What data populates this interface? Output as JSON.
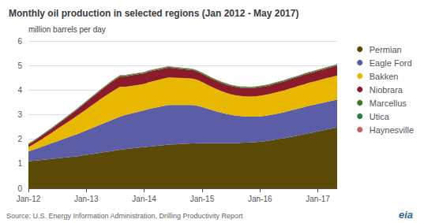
{
  "chart_data": {
    "type": "area",
    "title": "Monthly oil production in selected regions (Jan 2012 - May 2017)",
    "ylabel": "million barrels per day",
    "annotations": [
      "Source: U.S. Energy Information Administration, Drilling Productivity Report",
      "eia"
    ],
    "stacked": true,
    "grid": true,
    "legend": "right",
    "ylim": [
      0,
      6
    ],
    "yticks": [
      0,
      1,
      2,
      3,
      4,
      5,
      6
    ],
    "categories": [
      "Jan-12",
      null,
      null,
      null,
      null,
      null,
      null,
      null,
      null,
      null,
      null,
      null,
      "Jan-13",
      null,
      null,
      null,
      null,
      null,
      null,
      null,
      null,
      null,
      null,
      null,
      "Jan-14",
      null,
      null,
      null,
      null,
      null,
      null,
      null,
      null,
      null,
      null,
      null,
      "Jan-15",
      null,
      null,
      null,
      null,
      null,
      null,
      null,
      null,
      null,
      null,
      null,
      "Jan-16",
      null,
      null,
      null,
      null,
      null,
      null,
      null,
      null,
      null,
      null,
      null,
      "Jan-17",
      null,
      null,
      null,
      null
    ],
    "series": [
      {
        "name": "Permian",
        "color": "#5c4a08",
        "values": [
          1.1,
          1.12,
          1.14,
          1.16,
          1.18,
          1.2,
          1.22,
          1.24,
          1.26,
          1.28,
          1.3,
          1.33,
          1.36,
          1.39,
          1.42,
          1.45,
          1.48,
          1.51,
          1.54,
          1.57,
          1.6,
          1.62,
          1.64,
          1.66,
          1.68,
          1.7,
          1.72,
          1.74,
          1.76,
          1.78,
          1.79,
          1.8,
          1.81,
          1.82,
          1.83,
          1.84,
          1.84,
          1.84,
          1.84,
          1.84,
          1.84,
          1.84,
          1.84,
          1.84,
          1.85,
          1.86,
          1.87,
          1.88,
          1.9,
          1.92,
          1.95,
          1.98,
          2.01,
          2.04,
          2.08,
          2.12,
          2.16,
          2.2,
          2.24,
          2.28,
          2.32,
          2.36,
          2.4,
          2.44,
          2.48
        ]
      },
      {
        "name": "Eagle Ford",
        "color": "#5b5ea6",
        "values": [
          0.4,
          0.45,
          0.5,
          0.55,
          0.6,
          0.65,
          0.7,
          0.75,
          0.8,
          0.85,
          0.9,
          0.95,
          1.0,
          1.05,
          1.1,
          1.15,
          1.2,
          1.25,
          1.3,
          1.35,
          1.38,
          1.41,
          1.44,
          1.47,
          1.5,
          1.53,
          1.55,
          1.57,
          1.59,
          1.61,
          1.6,
          1.59,
          1.58,
          1.57,
          1.56,
          1.52,
          1.47,
          1.41,
          1.35,
          1.29,
          1.24,
          1.19,
          1.15,
          1.12,
          1.09,
          1.07,
          1.05,
          1.04,
          1.03,
          1.03,
          1.03,
          1.04,
          1.05,
          1.06,
          1.07,
          1.08,
          1.09,
          1.1,
          1.11,
          1.11,
          1.12,
          1.12,
          1.13,
          1.13,
          1.14
        ]
      },
      {
        "name": "Bakken",
        "color": "#e8b800",
        "values": [
          0.18,
          0.22,
          0.27,
          0.32,
          0.38,
          0.44,
          0.5,
          0.56,
          0.62,
          0.68,
          0.74,
          0.8,
          0.86,
          0.92,
          0.98,
          1.04,
          1.09,
          1.14,
          1.18,
          1.22,
          1.15,
          1.13,
          1.11,
          1.09,
          1.07,
          1.09,
          1.1,
          1.11,
          1.12,
          1.13,
          1.12,
          1.11,
          1.1,
          1.09,
          1.08,
          1.06,
          1.02,
          0.98,
          0.94,
          0.91,
          0.88,
          0.86,
          0.84,
          0.83,
          0.82,
          0.82,
          0.82,
          0.83,
          0.84,
          0.85,
          0.86,
          0.87,
          0.88,
          0.89,
          0.9,
          0.91,
          0.92,
          0.93,
          0.94,
          0.95,
          0.95,
          0.96,
          0.97,
          0.97,
          0.98
        ]
      },
      {
        "name": "Niobrara",
        "color": "#8b1a2a",
        "values": [
          0.1,
          0.11,
          0.12,
          0.14,
          0.15,
          0.16,
          0.18,
          0.19,
          0.21,
          0.23,
          0.25,
          0.27,
          0.29,
          0.31,
          0.33,
          0.35,
          0.37,
          0.39,
          0.4,
          0.41,
          0.42,
          0.43,
          0.43,
          0.43,
          0.43,
          0.43,
          0.42,
          0.41,
          0.4,
          0.39,
          0.38,
          0.37,
          0.36,
          0.35,
          0.34,
          0.33,
          0.33,
          0.33,
          0.33,
          0.33,
          0.33,
          0.33,
          0.33,
          0.33,
          0.33,
          0.34,
          0.34,
          0.34,
          0.35,
          0.35,
          0.35,
          0.36,
          0.36,
          0.36,
          0.37,
          0.37,
          0.37,
          0.38,
          0.38,
          0.38,
          0.39,
          0.39,
          0.39,
          0.4,
          0.4
        ]
      },
      {
        "name": "Marcellus",
        "color": "#3a7a2a",
        "values": [
          0.03,
          0.03,
          0.03,
          0.03,
          0.03,
          0.03,
          0.03,
          0.03,
          0.03,
          0.03,
          0.03,
          0.03,
          0.03,
          0.03,
          0.03,
          0.03,
          0.03,
          0.04,
          0.04,
          0.04,
          0.04,
          0.04,
          0.04,
          0.04,
          0.04,
          0.04,
          0.04,
          0.04,
          0.04,
          0.04,
          0.04,
          0.04,
          0.04,
          0.04,
          0.04,
          0.04,
          0.04,
          0.04,
          0.04,
          0.04,
          0.04,
          0.04,
          0.04,
          0.04,
          0.04,
          0.04,
          0.04,
          0.04,
          0.04,
          0.04,
          0.04,
          0.04,
          0.04,
          0.04,
          0.04,
          0.04,
          0.04,
          0.04,
          0.04,
          0.04,
          0.04,
          0.04,
          0.04,
          0.04,
          0.04
        ]
      },
      {
        "name": "Utica",
        "color": "#2a7a4a",
        "values": [
          0.01,
          0.01,
          0.01,
          0.01,
          0.01,
          0.01,
          0.01,
          0.01,
          0.01,
          0.01,
          0.01,
          0.01,
          0.01,
          0.01,
          0.01,
          0.01,
          0.01,
          0.01,
          0.01,
          0.01,
          0.01,
          0.01,
          0.01,
          0.01,
          0.01,
          0.01,
          0.01,
          0.01,
          0.01,
          0.01,
          0.01,
          0.01,
          0.01,
          0.01,
          0.01,
          0.01,
          0.01,
          0.01,
          0.01,
          0.01,
          0.01,
          0.01,
          0.01,
          0.01,
          0.01,
          0.01,
          0.01,
          0.01,
          0.01,
          0.01,
          0.01,
          0.01,
          0.01,
          0.01,
          0.01,
          0.01,
          0.01,
          0.01,
          0.01,
          0.01,
          0.01,
          0.01,
          0.01,
          0.01,
          0.01
        ]
      },
      {
        "name": "Haynesville",
        "color": "#c86060",
        "values": [
          0.01,
          0.01,
          0.01,
          0.01,
          0.01,
          0.01,
          0.01,
          0.01,
          0.01,
          0.01,
          0.01,
          0.01,
          0.01,
          0.01,
          0.01,
          0.01,
          0.01,
          0.01,
          0.01,
          0.01,
          0.01,
          0.01,
          0.01,
          0.01,
          0.01,
          0.01,
          0.01,
          0.01,
          0.01,
          0.01,
          0.01,
          0.01,
          0.01,
          0.01,
          0.01,
          0.01,
          0.01,
          0.01,
          0.01,
          0.01,
          0.01,
          0.01,
          0.01,
          0.01,
          0.01,
          0.01,
          0.01,
          0.01,
          0.01,
          0.01,
          0.01,
          0.01,
          0.01,
          0.01,
          0.01,
          0.01,
          0.01,
          0.01,
          0.01,
          0.01,
          0.01,
          0.01,
          0.01,
          0.01,
          0.01
        ]
      }
    ]
  }
}
